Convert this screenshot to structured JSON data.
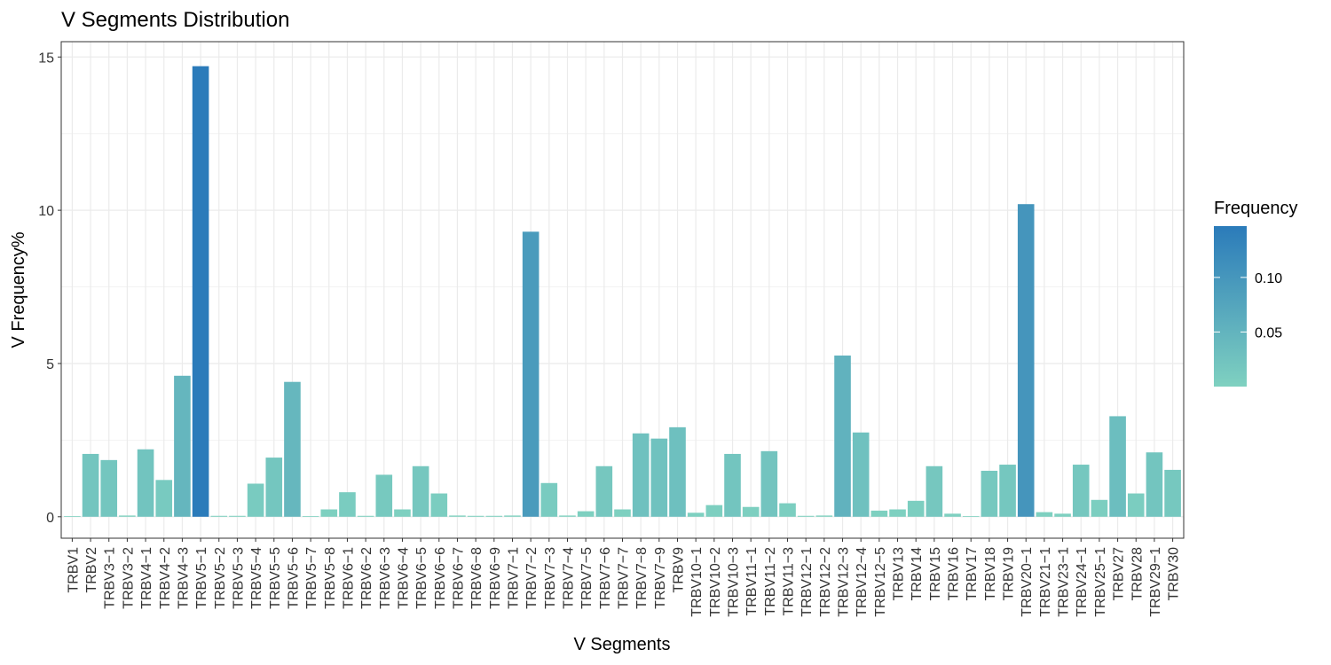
{
  "chart_data": {
    "type": "bar",
    "title": "V Segments Distribution",
    "xlabel": "V Segments",
    "ylabel": "V Frequency%",
    "ylim": [
      -0.7,
      15.5
    ],
    "yticks": [
      0,
      5,
      10,
      15
    ],
    "grid": true,
    "legend": {
      "title": "Frequency",
      "placement": "right",
      "type": "gradient",
      "range": [
        0.0,
        0.147
      ],
      "ticks": [
        0.05,
        0.1
      ],
      "tick_labels": [
        "0.05",
        "0.10"
      ],
      "color_low": "#7fd1c0",
      "color_high": "#2b7bba"
    },
    "categories": [
      "TRBV1",
      "TRBV2",
      "TRBV3−1",
      "TRBV3−2",
      "TRBV4−1",
      "TRBV4−2",
      "TRBV4−3",
      "TRBV5−1",
      "TRBV5−2",
      "TRBV5−3",
      "TRBV5−4",
      "TRBV5−5",
      "TRBV5−6",
      "TRBV5−7",
      "TRBV5−8",
      "TRBV6−1",
      "TRBV6−2",
      "TRBV6−3",
      "TRBV6−4",
      "TRBV6−5",
      "TRBV6−6",
      "TRBV6−7",
      "TRBV6−8",
      "TRBV6−9",
      "TRBV7−1",
      "TRBV7−2",
      "TRBV7−3",
      "TRBV7−4",
      "TRBV7−5",
      "TRBV7−6",
      "TRBV7−7",
      "TRBV7−8",
      "TRBV7−9",
      "TRBV9",
      "TRBV10−1",
      "TRBV10−2",
      "TRBV10−3",
      "TRBV11−1",
      "TRBV11−2",
      "TRBV11−3",
      "TRBV12−1",
      "TRBV12−2",
      "TRBV12−3",
      "TRBV12−4",
      "TRBV12−5",
      "TRBV13",
      "TRBV14",
      "TRBV15",
      "TRBV16",
      "TRBV17",
      "TRBV18",
      "TRBV19",
      "TRBV20−1",
      "TRBV21−1",
      "TRBV23−1",
      "TRBV24−1",
      "TRBV25−1",
      "TRBV27",
      "TRBV28",
      "TRBV29−1",
      "TRBV30"
    ],
    "values": [
      0.02,
      2.05,
      1.85,
      0.04,
      2.2,
      1.2,
      4.6,
      14.7,
      0.03,
      0.03,
      1.08,
      1.93,
      4.4,
      0.02,
      0.24,
      0.8,
      0.03,
      1.37,
      0.24,
      1.65,
      0.76,
      0.04,
      0.03,
      0.03,
      0.04,
      9.3,
      1.1,
      0.04,
      0.18,
      1.65,
      0.24,
      2.72,
      2.55,
      2.92,
      0.13,
      0.38,
      2.05,
      0.32,
      2.14,
      0.44,
      0.03,
      0.04,
      5.26,
      2.75,
      0.2,
      0.24,
      0.52,
      1.65,
      0.1,
      0.02,
      1.5,
      1.7,
      10.2,
      0.15,
      0.1,
      1.7,
      0.55,
      3.28,
      0.76,
      2.1,
      1.53
    ]
  }
}
